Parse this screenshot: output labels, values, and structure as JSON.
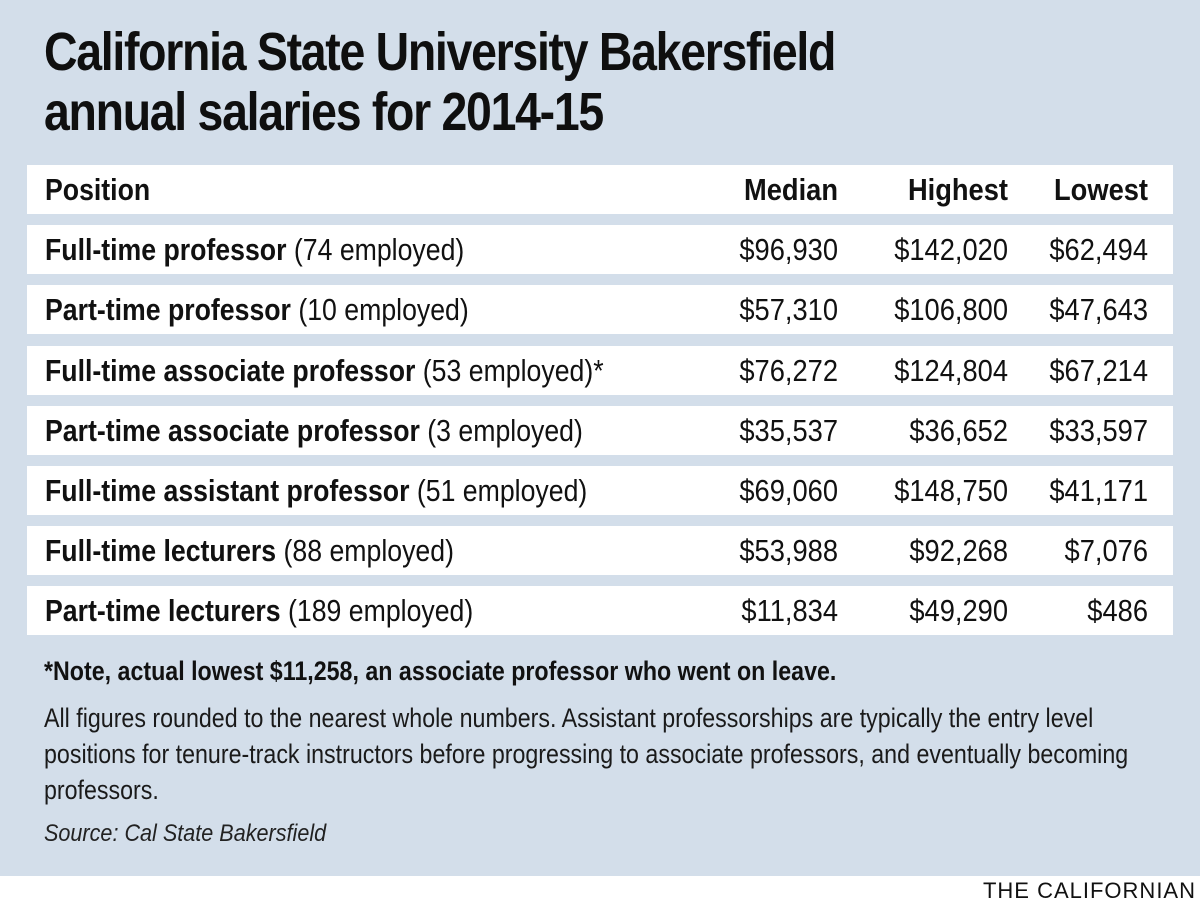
{
  "title_line1": "California State University Bakersfield",
  "title_line2": "annual salaries for 2014-15",
  "chart_data": {
    "type": "table",
    "columns": [
      "Position",
      "Median",
      "Highest",
      "Lowest"
    ],
    "rows": [
      {
        "position": "Full-time professor",
        "employed": "(74 employed)",
        "median": "$96,930",
        "highest": "$142,020",
        "lowest": "$62,494"
      },
      {
        "position": "Part-time professor",
        "employed": "(10 employed)",
        "median": "$57,310",
        "highest": "$106,800",
        "lowest": "$47,643"
      },
      {
        "position": "Full-time associate professor",
        "employed": "(53 employed)*",
        "median": "$76,272",
        "highest": "$124,804",
        "lowest": "$67,214"
      },
      {
        "position": "Part-time associate professor",
        "employed": "(3 employed)",
        "median": "$35,537",
        "highest": "$36,652",
        "lowest": "$33,597"
      },
      {
        "position": "Full-time assistant professor",
        "employed": "(51 employed)",
        "median": "$69,060",
        "highest": "$148,750",
        "lowest": "$41,171"
      },
      {
        "position": "Full-time lecturers",
        "employed": "(88 employed)",
        "median": "$53,988",
        "highest": "$92,268",
        "lowest": "$7,076"
      },
      {
        "position": "Part-time lecturers",
        "employed": "(189 employed)",
        "median": "$11,834",
        "highest": "$49,290",
        "lowest": "$486"
      }
    ]
  },
  "note": "*Note, actual lowest $11,258, an associate professor who went on leave.",
  "description": "All figures rounded to the nearest whole numbers. Assistant professorships are typically the entry level positions for tenure-track instructors before progressing to associate professors, and eventually becoming professors.",
  "source": "Source: Cal State Bakersfield",
  "credit": "THE CALIFORNIAN",
  "colors": {
    "panel_background": "#d3deea",
    "row_background": "#ffffff",
    "text": "#111111"
  }
}
